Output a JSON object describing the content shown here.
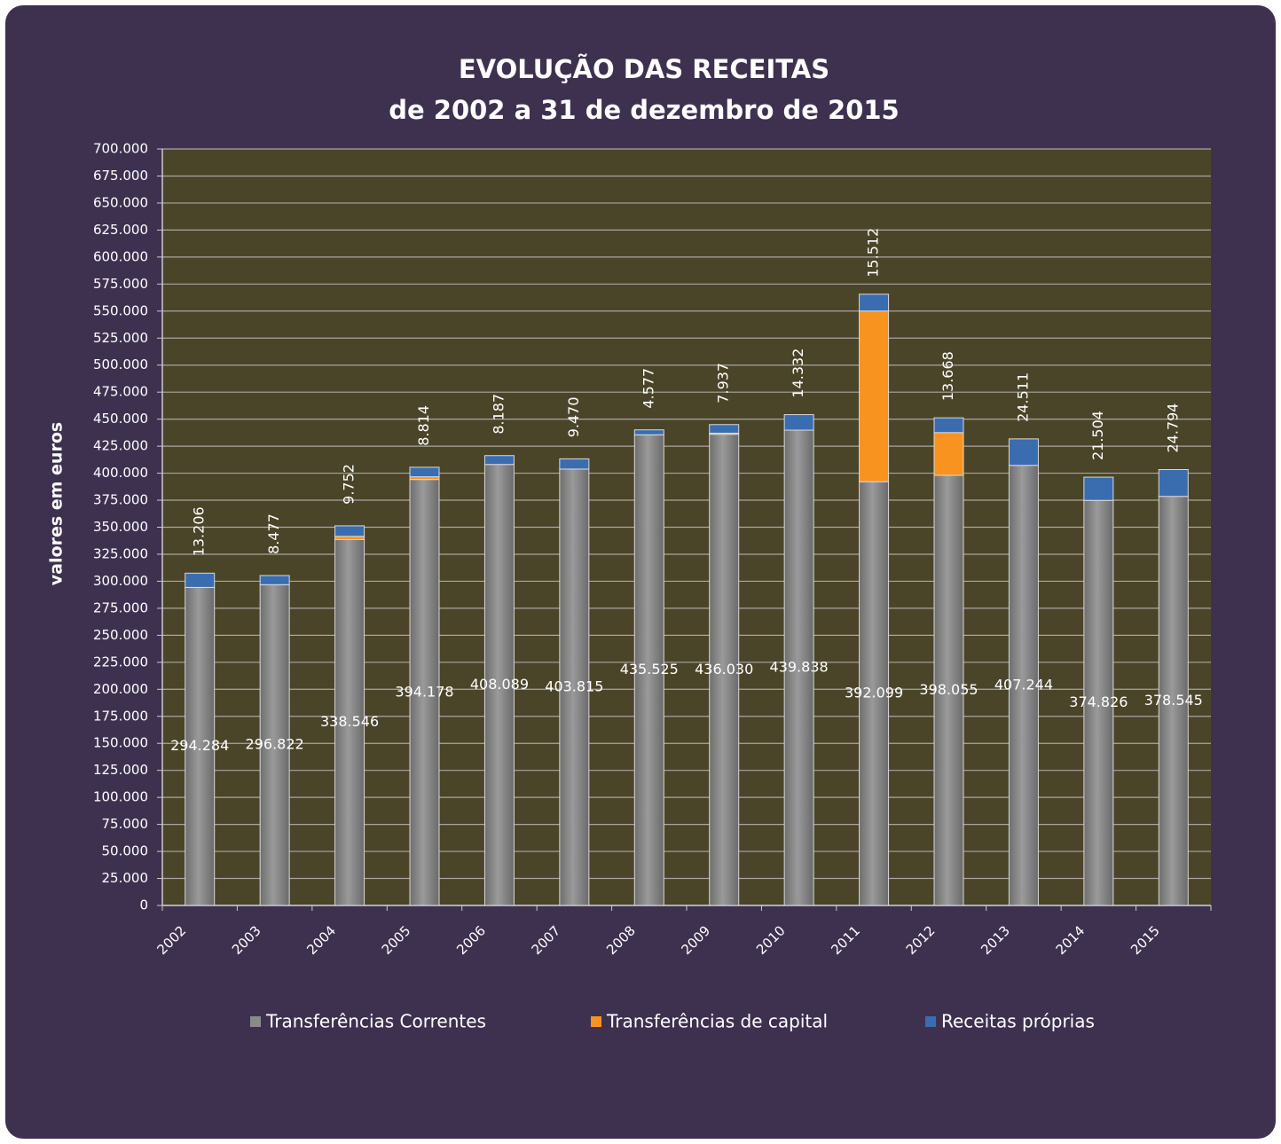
{
  "chart_data": {
    "type": "stacked_bar",
    "title": "EVOLUÇÃO DAS RECEITAS",
    "subtitle": "de 2002 a 31 de dezembro de 2015",
    "y_label": "valores em euros",
    "categories": [
      "2002",
      "2003",
      "2004",
      "2005",
      "2006",
      "2007",
      "2008",
      "2009",
      "2010",
      "2011",
      "2012",
      "2013",
      "2014",
      "2015"
    ],
    "series": [
      {
        "name": "Transferências Correntes",
        "color": "#8a8a8a",
        "values": [
          294284,
          296822,
          338546,
          394178,
          408089,
          403815,
          435525,
          436030,
          439838,
          392099,
          398055,
          407244,
          374826,
          378545
        ],
        "value_labels": [
          "294.284",
          "296.822",
          "338.546",
          "394.178",
          "408.089",
          "403.815",
          "435.525",
          "436.030",
          "439.838",
          "392.099",
          "398.055",
          "407.244",
          "374.826",
          "378.545"
        ]
      },
      {
        "name": "Transferências de capital",
        "color": "#f7931e",
        "values": [
          0,
          0,
          3000,
          2500,
          0,
          0,
          0,
          1000,
          0,
          158000,
          39500,
          0,
          0,
          0
        ]
      },
      {
        "name": "Receitas próprias",
        "color": "#3a6cb0",
        "values": [
          13206,
          8477,
          9752,
          8814,
          8187,
          9470,
          4577,
          7937,
          14332,
          15512,
          13668,
          24511,
          21504,
          24794
        ],
        "value_labels": [
          "13.206",
          "8.477",
          "9.752",
          "8.814",
          "8.187",
          "9.470",
          "4.577",
          "7.937",
          "14.332",
          "15.512",
          "13.668",
          "24.511",
          "21.504",
          "24.794"
        ]
      }
    ],
    "ylim": [
      0,
      700000
    ],
    "yticks": [
      0,
      {
        "value": 25000,
        "label": "25.000"
      },
      {
        "value": 50000,
        "label": "50.000"
      },
      {
        "value": 75000,
        "label": "75.000"
      },
      {
        "value": 100000,
        "label": "100.000"
      },
      {
        "value": 125000,
        "label": "125.000"
      },
      {
        "value": 150000,
        "label": "150.000"
      },
      {
        "value": 175000,
        "label": "175.000"
      },
      {
        "value": 200000,
        "label": "200.000"
      },
      {
        "value": 225000,
        "label": "225.000"
      },
      {
        "value": 250000,
        "label": "250.000"
      },
      {
        "value": 275000,
        "label": "275.000"
      },
      {
        "value": 300000,
        "label": "300.000"
      },
      {
        "value": 325000,
        "label": "325.000"
      },
      {
        "value": 350000,
        "label": "350.000"
      },
      {
        "value": 375000,
        "label": "375.000"
      },
      {
        "value": 400000,
        "label": "400.000"
      },
      {
        "value": 425000,
        "label": "425.000"
      },
      {
        "value": 450000,
        "label": "450.000"
      },
      {
        "value": 475000,
        "label": "475.000"
      },
      {
        "value": 500000,
        "label": "500.000"
      },
      {
        "value": 525000,
        "label": "525.000"
      },
      {
        "value": 550000,
        "label": "550.000"
      },
      {
        "value": 575000,
        "label": "575.000"
      },
      {
        "value": 600000,
        "label": "600.000"
      },
      {
        "value": 625000,
        "label": "625.000"
      },
      {
        "value": 650000,
        "label": "650.000"
      },
      {
        "value": 675000,
        "label": "675.000"
      },
      {
        "value": 700000,
        "label": "700.000"
      }
    ],
    "grid": true
  }
}
